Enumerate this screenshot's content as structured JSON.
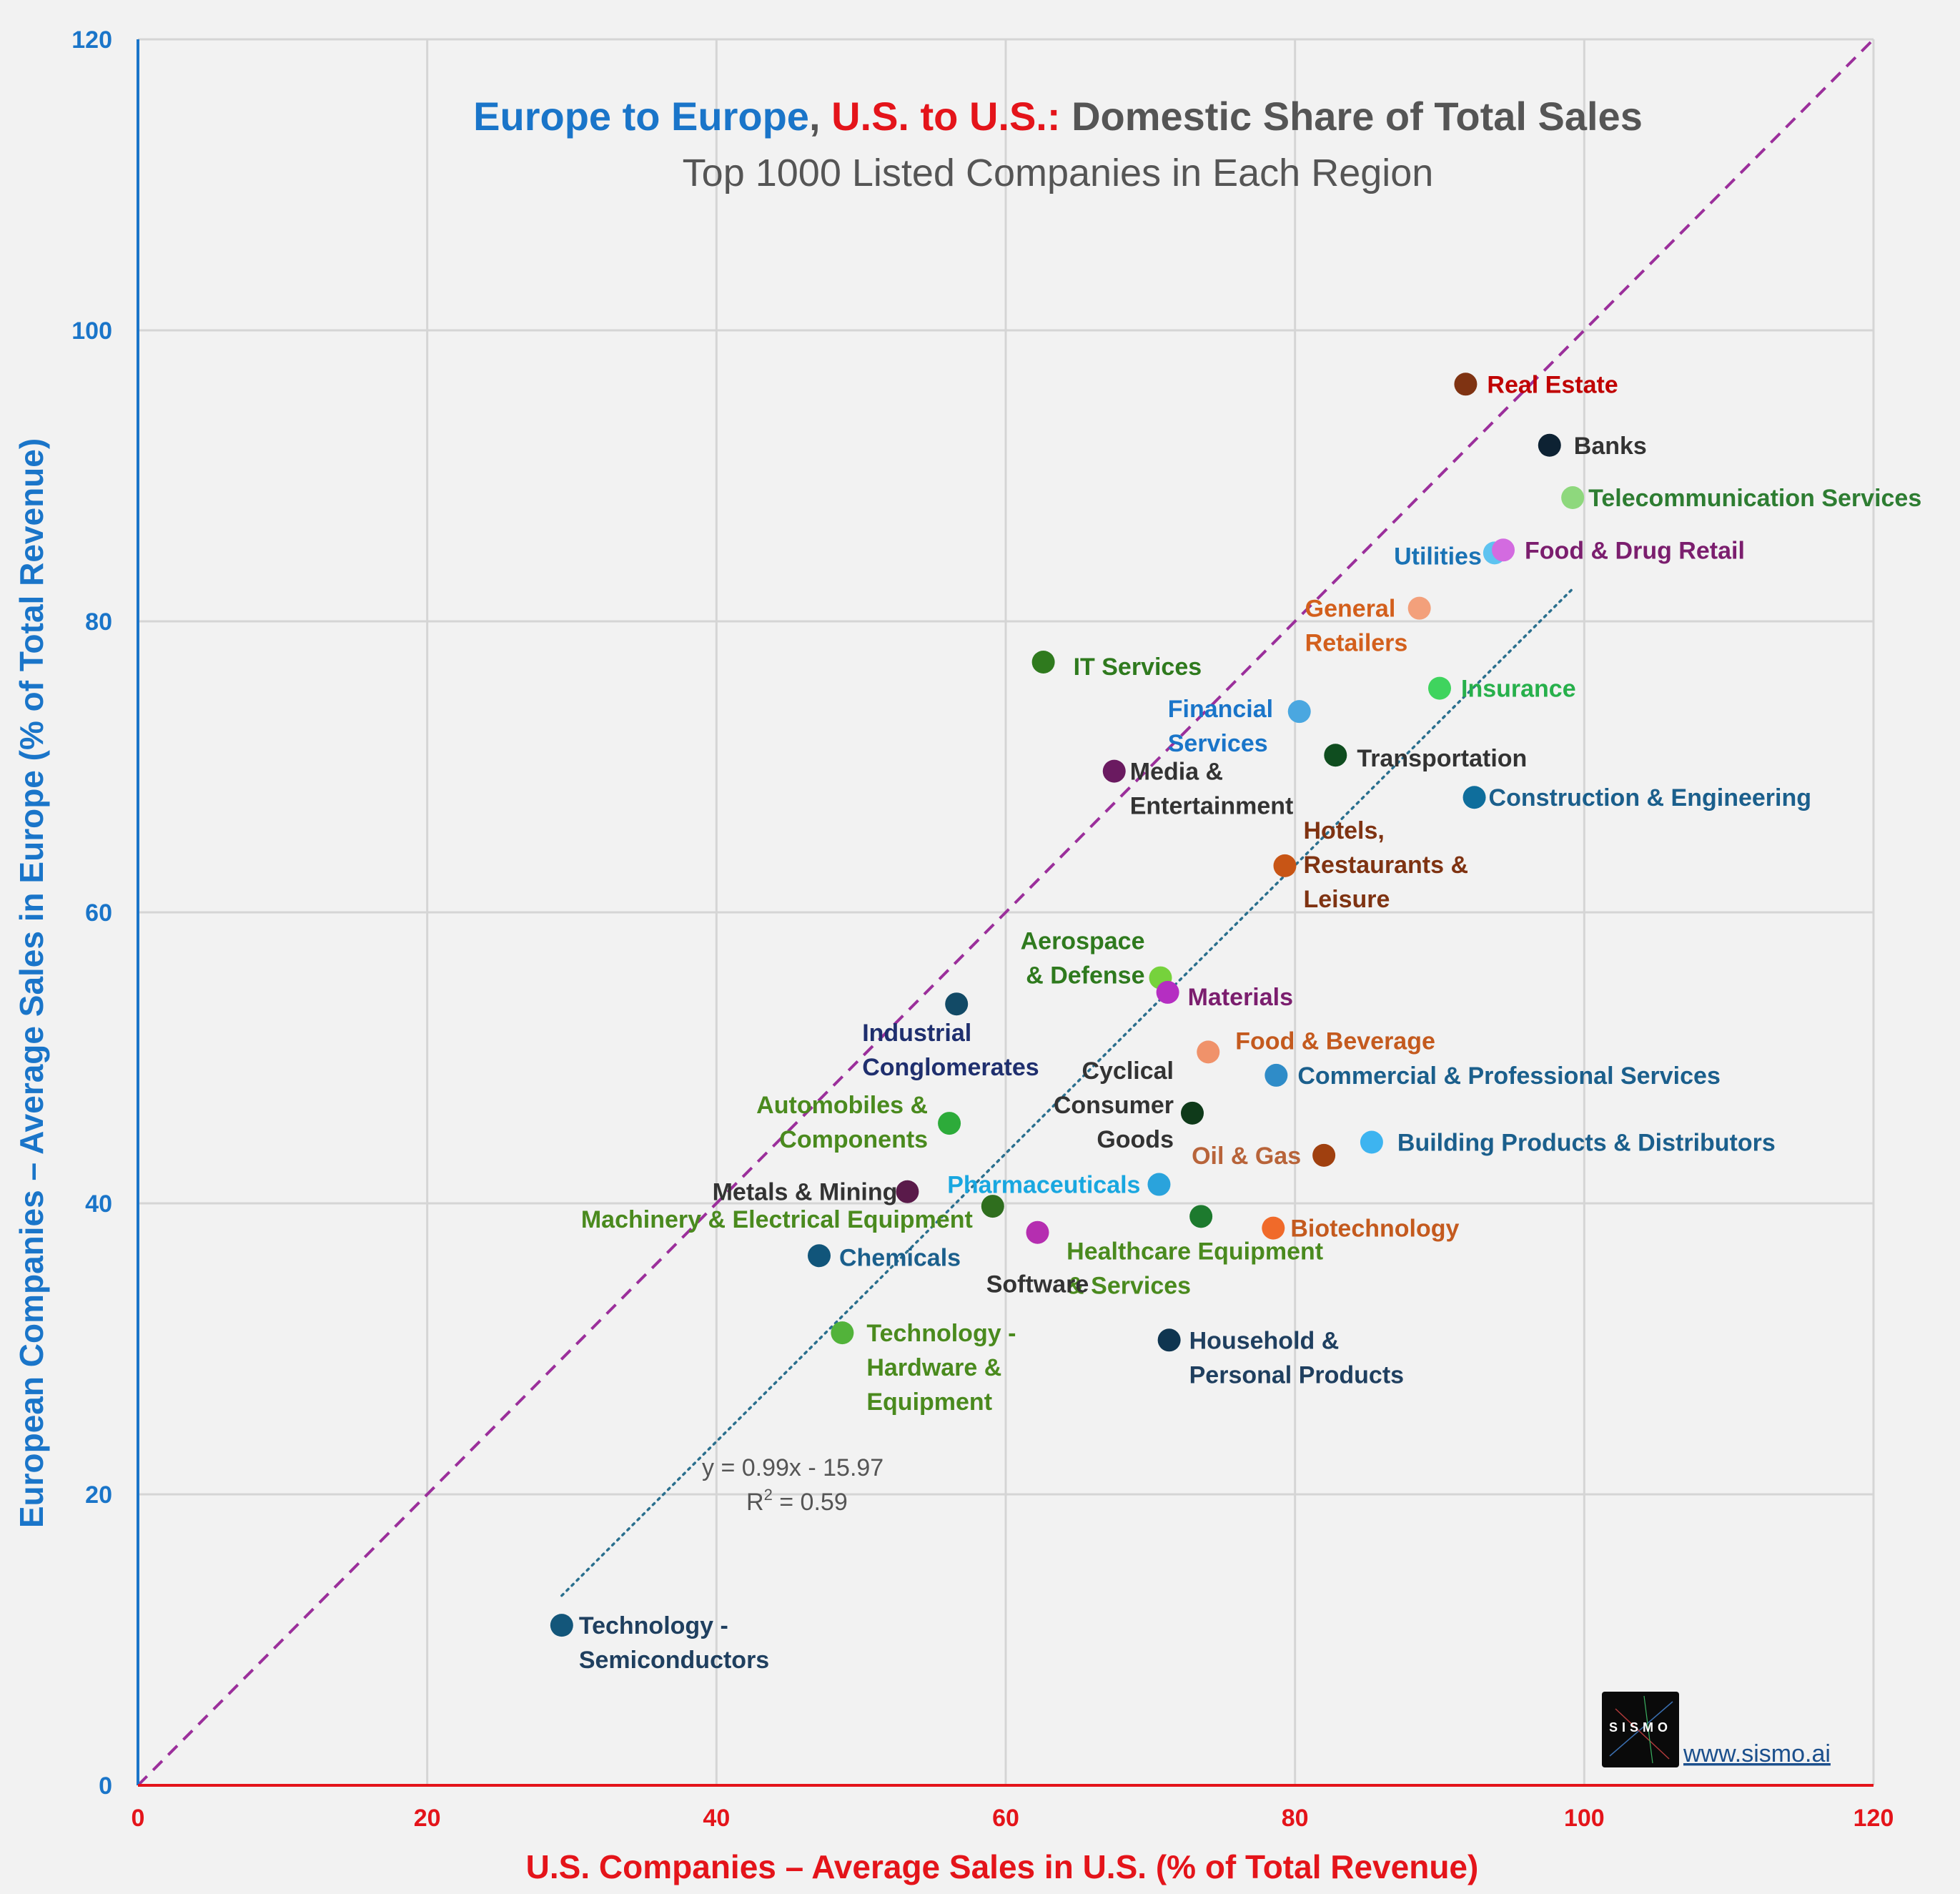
{
  "chart_data": {
    "type": "scatter",
    "title_parts": [
      "Europe to Europe",
      ", ",
      "U.S. to U.S.:",
      " Domestic Share of Total Sales"
    ],
    "title_colors": [
      "#1a75c9",
      "#555555",
      "#e4141a",
      "#555555"
    ],
    "subtitle": "Top 1000 Listed Companies in Each Region",
    "xlabel": "U.S. Companies – Average Sales in U.S. (% of Total Revenue)",
    "ylabel": "European Companies – Average Sales in Europe (% of Total Revenue)",
    "xlim": [
      0,
      120
    ],
    "ylim": [
      0,
      120
    ],
    "xticks": [
      "0",
      "20",
      "40",
      "60",
      "80",
      "100",
      "120"
    ],
    "yticks": [
      "0",
      "20",
      "40",
      "60",
      "80",
      "100",
      "120"
    ],
    "grid": true,
    "reference_line": "y = x",
    "trendline": {
      "equation": "y = 0.99x - 15.97",
      "r2_prefix": "R",
      "r2_sup": "2",
      "r2_value": " = 0.59",
      "x_range": [
        29.3,
        99.2
      ]
    },
    "points": [
      {
        "label": [
          "Real Estate"
        ],
        "x": 91.8,
        "y": 96.3,
        "color": "#7f3312",
        "label_color": "#c00000"
      },
      {
        "label": [
          "Banks"
        ],
        "x": 97.6,
        "y": 92.1,
        "color": "#0d2233",
        "label_color": "#333333"
      },
      {
        "label": [
          "Telecommunication Services"
        ],
        "x": 99.2,
        "y": 88.5,
        "color": "#8ed87d",
        "label_color": "#2e7d32"
      },
      {
        "label": [
          "Utilities"
        ],
        "x": 93.8,
        "y": 84.7,
        "color": "#5ec3f0",
        "label_color": "#1a73b5"
      },
      {
        "label": [
          "Food & Drug Retail"
        ],
        "x": 94.4,
        "y": 84.9,
        "color": "#d36be0",
        "label_color": "#7b1e6e"
      },
      {
        "label": [
          "General",
          "Retailers"
        ],
        "x": 88.6,
        "y": 80.9,
        "color": "#f3a07b",
        "label_color": "#d35f1c"
      },
      {
        "label": [
          "IT Services"
        ],
        "x": 62.6,
        "y": 77.2,
        "color": "#2f7a1e",
        "label_color": "#2f7a1e"
      },
      {
        "label": [
          "Insurance"
        ],
        "x": 90.0,
        "y": 75.4,
        "color": "#3fd45e",
        "label_color": "#27b04b"
      },
      {
        "label": [
          "Financial",
          "Services"
        ],
        "x": 80.3,
        "y": 73.8,
        "color": "#4aa7e0",
        "label_color": "#1a75c9"
      },
      {
        "label": [
          "Transportation"
        ],
        "x": 82.8,
        "y": 70.8,
        "color": "#0f4d1f",
        "label_color": "#333333"
      },
      {
        "label": [
          "Media &",
          "Entertainment"
        ],
        "x": 67.5,
        "y": 69.7,
        "color": "#6a1a60",
        "label_color": "#333333"
      },
      {
        "label": [
          "Construction & Engineering"
        ],
        "x": 92.4,
        "y": 67.9,
        "color": "#0f6e9c",
        "label_color": "#1b5f8c"
      },
      {
        "label": [
          "Hotels,",
          "Restaurants &",
          "Leisure"
        ],
        "x": 79.3,
        "y": 63.2,
        "color": "#c85515",
        "label_color": "#7f3312"
      },
      {
        "label": [
          "Aerospace",
          "& Defense"
        ],
        "x": 70.7,
        "y": 55.5,
        "color": "#76d23c",
        "label_color": "#2f7a1e"
      },
      {
        "label": [
          "Materials"
        ],
        "x": 71.2,
        "y": 54.5,
        "color": "#b52ec2",
        "label_color": "#7b1e6e"
      },
      {
        "label": [
          "Industrial",
          "Conglomerates"
        ],
        "x": 56.6,
        "y": 53.7,
        "color": "#124a66",
        "label_color": "#1f2f6e"
      },
      {
        "label": [
          "Food & Beverage"
        ],
        "x": 74.0,
        "y": 50.4,
        "color": "#f0926a",
        "label_color": "#c45a1e"
      },
      {
        "label": [
          "Commercial & Professional Services"
        ],
        "x": 78.7,
        "y": 48.8,
        "color": "#2f8cc8",
        "label_color": "#1b5f8c"
      },
      {
        "label": [
          "Cyclical",
          "Consumer",
          "Goods"
        ],
        "x": 72.9,
        "y": 46.2,
        "color": "#0f3a1a",
        "label_color": "#333333"
      },
      {
        "label": [
          "Automobiles &",
          "Components"
        ],
        "x": 56.1,
        "y": 45.5,
        "color": "#2dab3a",
        "label_color": "#4a8a1e"
      },
      {
        "label": [
          "Building Products & Distributors"
        ],
        "x": 85.3,
        "y": 44.2,
        "color": "#3db4f0",
        "label_color": "#1b5f8c"
      },
      {
        "label": [
          "Oil & Gas"
        ],
        "x": 82.0,
        "y": 43.3,
        "color": "#a0400f",
        "label_color": "#b8643a"
      },
      {
        "label": [
          "Pharmaceuticals"
        ],
        "x": 70.6,
        "y": 41.3,
        "color": "#2aa3dc",
        "label_color": "#19a7e0"
      },
      {
        "label": [
          "Metals & Mining"
        ],
        "x": 53.2,
        "y": 40.8,
        "color": "#5a1a4a",
        "label_color": "#333333"
      },
      {
        "label": [
          "Machinery & Electrical Equipment"
        ],
        "x": 59.1,
        "y": 39.8,
        "color": "#2f6e1e",
        "label_color": "#4a8a1e"
      },
      {
        "label": [
          "Healthcare Equipment",
          "& Services"
        ],
        "x": 73.5,
        "y": 39.1,
        "color": "#1d7a2e",
        "label_color": "#4a8a1e"
      },
      {
        "label": [
          "Biotechnology"
        ],
        "x": 78.5,
        "y": 38.3,
        "color": "#f06a2a",
        "label_color": "#c45a1e"
      },
      {
        "label": [
          "Software"
        ],
        "x": 62.2,
        "y": 38.0,
        "color": "#b52eb0",
        "label_color": "#333333"
      },
      {
        "label": [
          "Chemicals"
        ],
        "x": 47.1,
        "y": 36.4,
        "color": "#11557a",
        "label_color": "#1b5f8c"
      },
      {
        "label": [
          "Technology -",
          "Hardware &",
          "Equipment"
        ],
        "x": 48.7,
        "y": 31.1,
        "color": "#52b33a",
        "label_color": "#4a8a1e"
      },
      {
        "label": [
          "Household &",
          "Personal Products"
        ],
        "x": 71.3,
        "y": 30.6,
        "color": "#0f3550",
        "label_color": "#1f3f5f"
      },
      {
        "label": [
          "Technology -",
          "Semiconductors"
        ],
        "x": 29.3,
        "y": 11.0,
        "color": "#13567a",
        "label_color": "#1f3f5f"
      }
    ]
  },
  "footer": {
    "logo_text": "SISMO",
    "url": "www.sismo.ai"
  }
}
